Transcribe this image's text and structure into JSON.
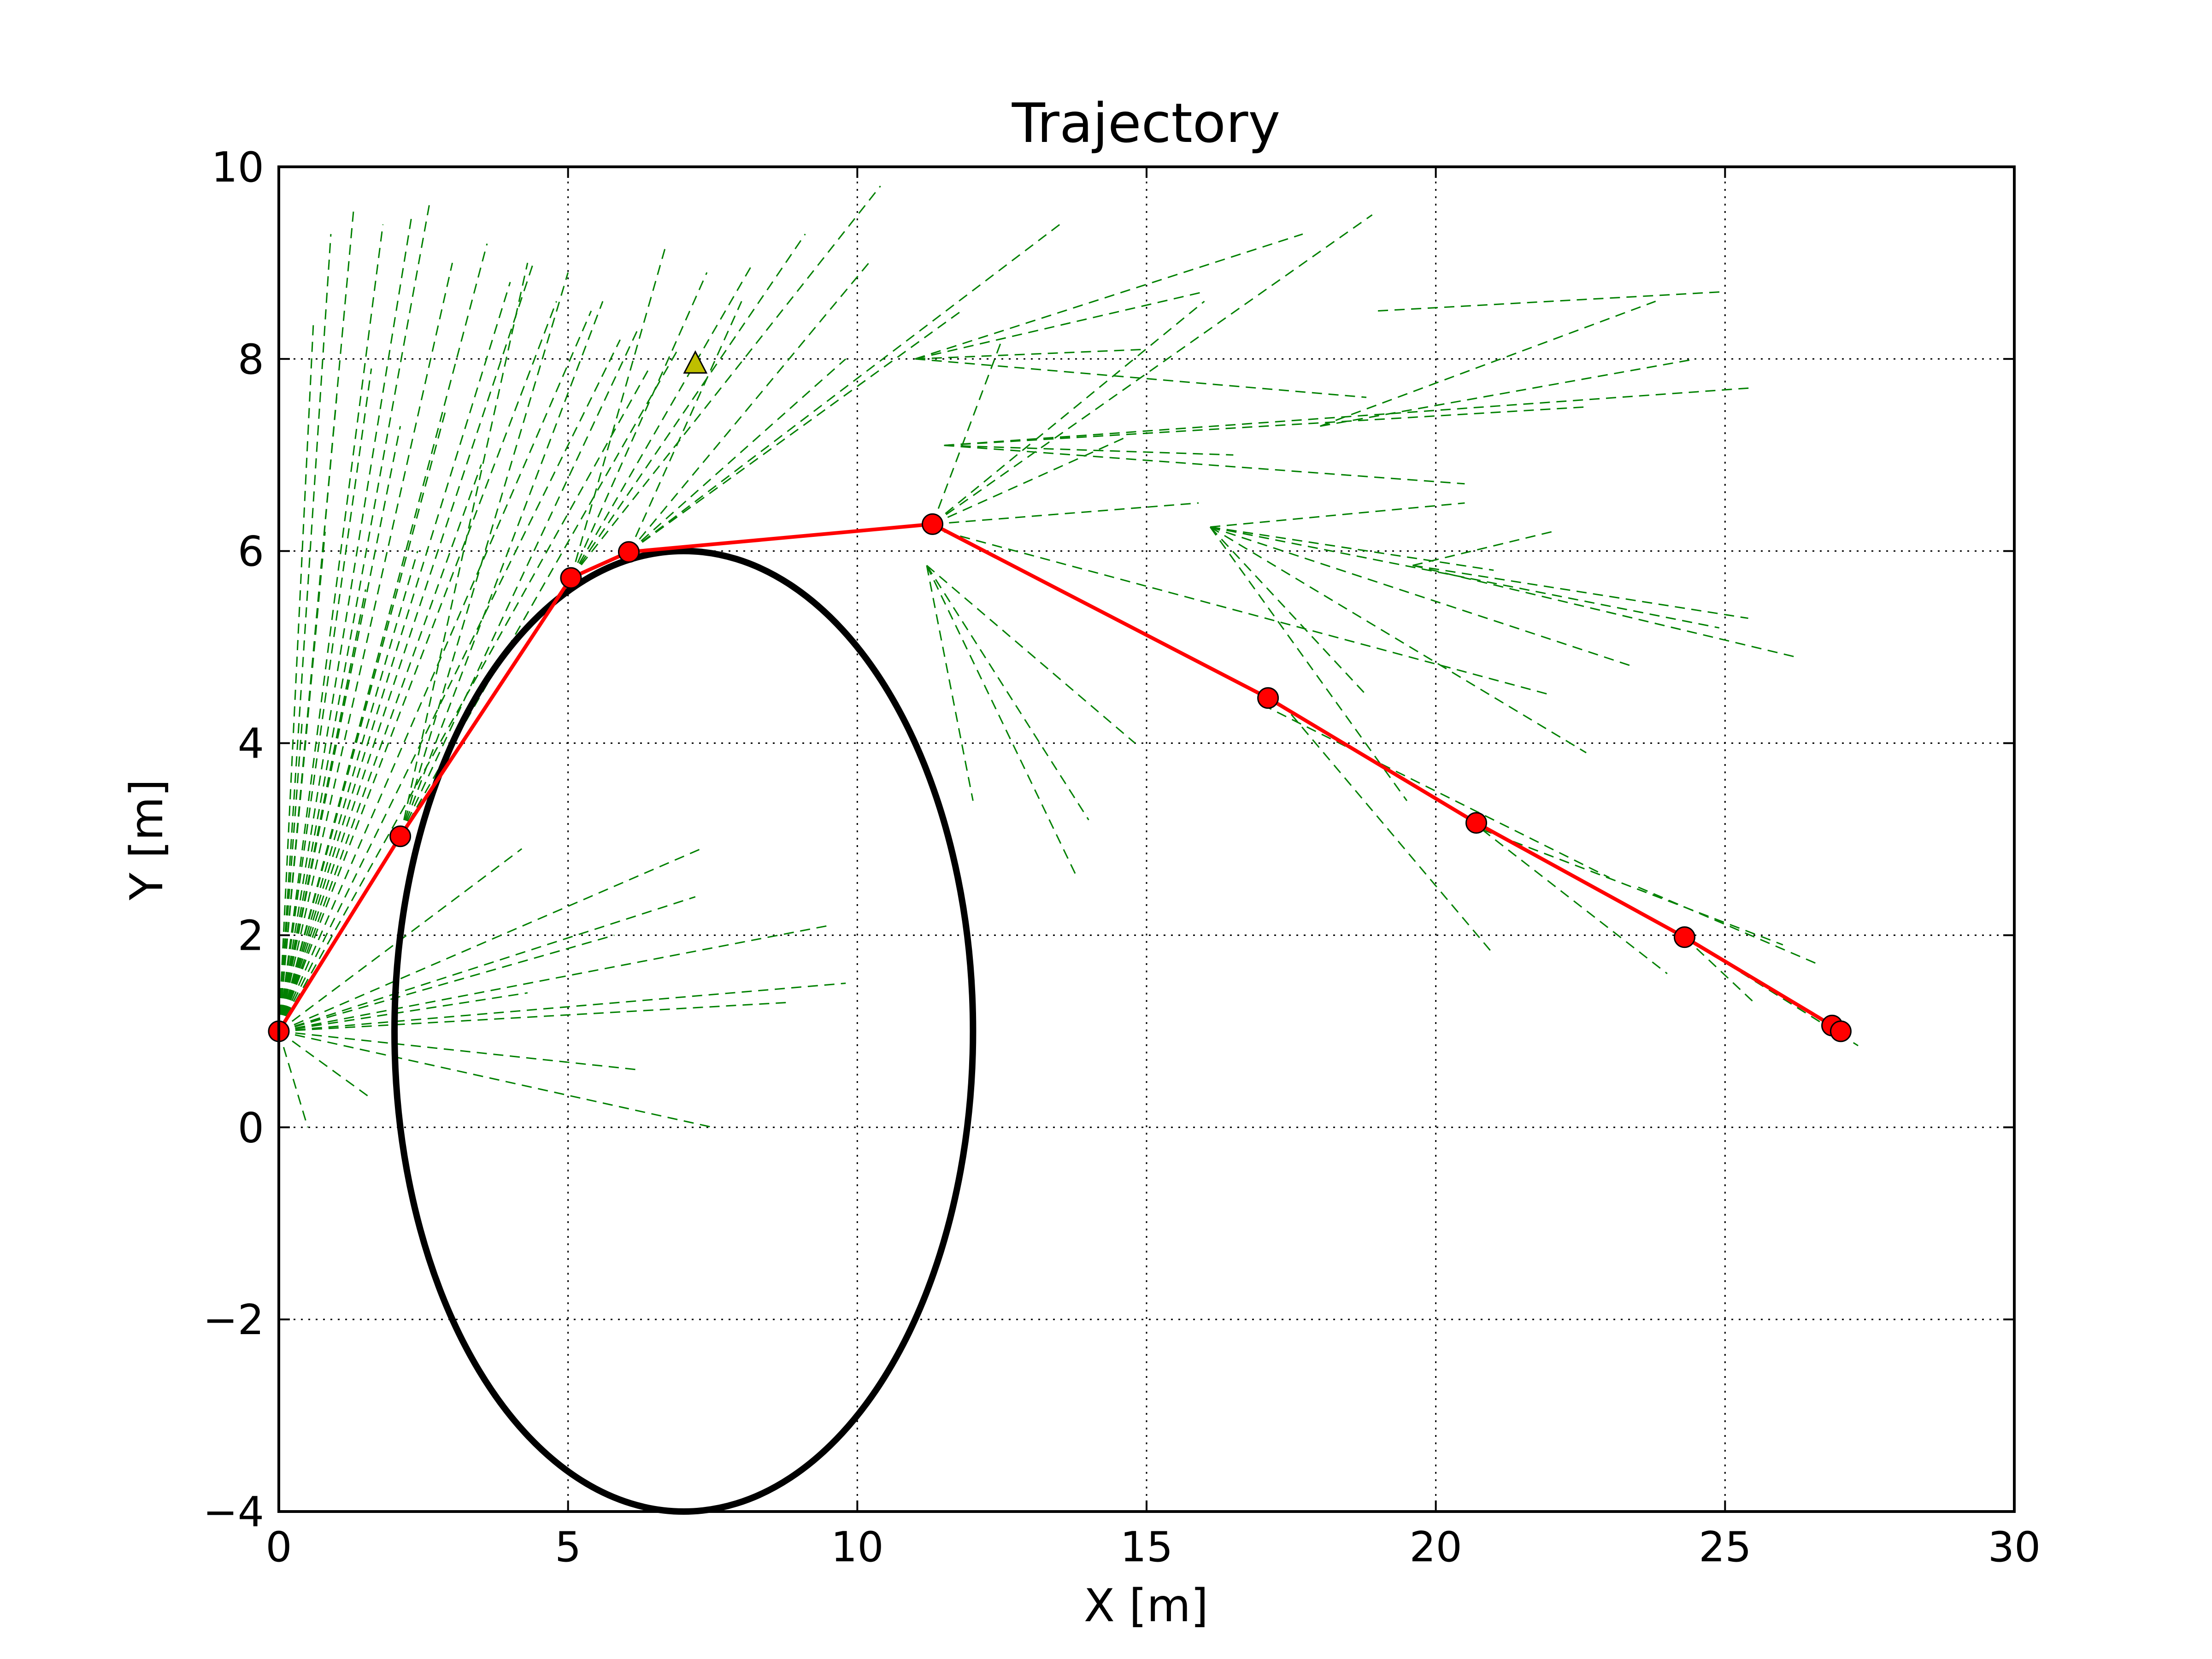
{
  "chart_data": {
    "type": "line",
    "title": "Trajectory",
    "xlabel": "X [m]",
    "ylabel": "Y [m]",
    "xlim": [
      0,
      30
    ],
    "ylim": [
      -4,
      10
    ],
    "xticks": [
      0,
      5,
      10,
      15,
      20,
      25,
      30
    ],
    "yticks": [
      -4,
      -2,
      0,
      2,
      4,
      6,
      8,
      10
    ],
    "xtick_labels": [
      "0",
      "5",
      "10",
      "15",
      "20",
      "25",
      "30"
    ],
    "ytick_labels": [
      "−4",
      "−2",
      "0",
      "2",
      "4",
      "6",
      "8",
      "10"
    ],
    "grid": true,
    "colors": {
      "trajectory": "#ff0000",
      "tree": "#008000",
      "obstacle": "#000000",
      "goal": "#bfbf00"
    },
    "series": [
      {
        "style": "red line with circle markers",
        "x": [
          0,
          2.1,
          5.05,
          6.05,
          11.3,
          17.1,
          20.7,
          24.3,
          26.85,
          27.0
        ],
        "y": [
          1.0,
          3.03,
          5.72,
          5.99,
          6.28,
          4.47,
          3.17,
          1.98,
          1.06,
          1.0
        ]
      },
      {
        "style": "green dashed exploration tree edges (from-x, from-y, to-x, to-y)",
        "segments": [
          [
            0,
            1.0,
            0.9,
            9.3
          ],
          [
            0,
            1.0,
            1.3,
            9.6
          ],
          [
            0,
            1.0,
            1.8,
            9.4
          ],
          [
            0,
            1.0,
            2.3,
            9.5
          ],
          [
            0,
            1.0,
            2.6,
            9.6
          ],
          [
            0,
            1.0,
            3.0,
            9.0
          ],
          [
            0,
            1.0,
            3.6,
            9.2
          ],
          [
            0,
            1.0,
            4.0,
            8.8
          ],
          [
            0,
            1.0,
            4.4,
            9.0
          ],
          [
            0,
            1.0,
            4.8,
            8.6
          ],
          [
            0,
            1.0,
            5.4,
            8.5
          ],
          [
            0,
            1.0,
            5.9,
            8.2
          ],
          [
            0,
            1.0,
            6.4,
            7.9
          ],
          [
            0,
            1.0,
            0.6,
            8.4
          ],
          [
            0,
            1.0,
            1.0,
            7.6
          ],
          [
            0,
            1.0,
            1.6,
            7.9
          ],
          [
            0,
            1.0,
            2.1,
            7.3
          ],
          [
            0,
            1.0,
            2.9,
            7.5
          ],
          [
            0,
            1.0,
            3.5,
            6.9
          ],
          [
            0,
            1.0,
            0.8,
            6.2
          ],
          [
            0,
            1.0,
            1.5,
            5.6
          ],
          [
            0,
            1.0,
            2.4,
            6.0
          ],
          [
            0,
            1.0,
            0.4,
            4.2
          ],
          [
            0,
            1.0,
            4.3,
            1.4
          ],
          [
            0,
            1.0,
            5.8,
            2.0
          ],
          [
            0,
            1.0,
            7.2,
            2.4
          ],
          [
            0,
            1.0,
            9.5,
            2.1
          ],
          [
            0,
            1.0,
            8.8,
            1.3
          ],
          [
            0,
            1.0,
            9.8,
            1.5
          ],
          [
            0,
            1.0,
            6.2,
            0.6
          ],
          [
            0,
            1.0,
            7.5,
            0.0
          ],
          [
            0,
            1.0,
            0.5,
            0.0
          ],
          [
            0,
            1.0,
            1.6,
            0.3
          ],
          [
            0,
            1.0,
            4.2,
            2.9
          ],
          [
            0,
            1.0,
            7.3,
            2.9
          ],
          [
            2.1,
            3.03,
            4.3,
            9.0
          ],
          [
            2.1,
            3.03,
            5.0,
            8.9
          ],
          [
            2.1,
            3.03,
            5.6,
            8.6
          ],
          [
            2.1,
            3.03,
            6.2,
            8.3
          ],
          [
            2.1,
            3.03,
            6.9,
            8.1
          ],
          [
            5.05,
            5.72,
            6.7,
            9.2
          ],
          [
            5.05,
            5.72,
            7.4,
            8.9
          ],
          [
            5.05,
            5.72,
            8.2,
            9.0
          ],
          [
            5.05,
            5.72,
            9.1,
            9.3
          ],
          [
            5.05,
            5.72,
            10.4,
            9.8
          ],
          [
            6.05,
            5.99,
            8.0,
            8.6
          ],
          [
            6.05,
            5.99,
            9.8,
            8.0
          ],
          [
            6.05,
            5.99,
            10.2,
            9.0
          ],
          [
            6.05,
            5.99,
            13.5,
            9.4
          ],
          [
            6.05,
            5.99,
            11.8,
            8.5
          ],
          [
            11.3,
            6.28,
            16.0,
            8.6
          ],
          [
            11.3,
            6.28,
            18.9,
            9.5
          ],
          [
            11.3,
            6.28,
            14.7,
            7.2
          ],
          [
            11.3,
            6.28,
            15.9,
            6.5
          ],
          [
            11.3,
            6.28,
            12.5,
            8.2
          ],
          [
            11.0,
            8.0,
            15.0,
            8.1
          ],
          [
            11.0,
            8.0,
            18.8,
            7.6
          ],
          [
            11.0,
            8.0,
            17.7,
            9.3
          ],
          [
            11.0,
            8.0,
            16.0,
            8.7
          ],
          [
            11.5,
            7.1,
            16.5,
            7.0
          ],
          [
            11.5,
            7.1,
            20.5,
            6.7
          ],
          [
            11.5,
            7.1,
            25.5,
            7.7
          ],
          [
            11.5,
            7.1,
            22.6,
            7.5
          ],
          [
            18.0,
            7.3,
            24.5,
            8.0
          ],
          [
            18.0,
            7.3,
            23.8,
            8.6
          ],
          [
            19.0,
            8.5,
            25.0,
            8.7
          ],
          [
            11.2,
            5.85,
            13.8,
            2.6
          ],
          [
            11.2,
            5.85,
            12.0,
            3.4
          ],
          [
            11.2,
            5.85,
            14.8,
            4.0
          ],
          [
            11.2,
            5.85,
            14.0,
            3.2
          ],
          [
            16.1,
            6.25,
            21.0,
            5.8
          ],
          [
            16.1,
            6.25,
            19.5,
            3.4
          ],
          [
            16.1,
            6.25,
            23.4,
            4.8
          ],
          [
            16.1,
            6.25,
            20.5,
            6.5
          ],
          [
            16.1,
            6.25,
            24.9,
            5.2
          ],
          [
            16.1,
            6.25,
            22.6,
            3.9
          ],
          [
            16.1,
            6.25,
            18.8,
            4.5
          ],
          [
            19.6,
            5.85,
            26.2,
            4.9
          ],
          [
            19.6,
            5.85,
            25.4,
            5.3
          ],
          [
            19.6,
            5.85,
            22.0,
            6.2
          ],
          [
            17.0,
            4.4,
            23.0,
            2.6
          ],
          [
            17.5,
            4.3,
            21.0,
            1.8
          ],
          [
            20.8,
            3.1,
            24.0,
            1.6
          ],
          [
            20.8,
            3.1,
            26.0,
            1.9
          ],
          [
            24.3,
            1.98,
            27.3,
            0.85
          ],
          [
            24.3,
            1.98,
            25.5,
            1.3
          ],
          [
            23.5,
            2.5,
            26.6,
            1.7
          ],
          [
            11.5,
            6.2,
            22.0,
            4.5
          ]
        ]
      }
    ],
    "obstacle": {
      "shape": "ellipse",
      "center": [
        7.0,
        1.0
      ],
      "radius_x": 5.0,
      "radius_y": 5.0
    },
    "goal_marker": {
      "shape": "triangle",
      "x": 7.2,
      "y": 7.95
    }
  }
}
